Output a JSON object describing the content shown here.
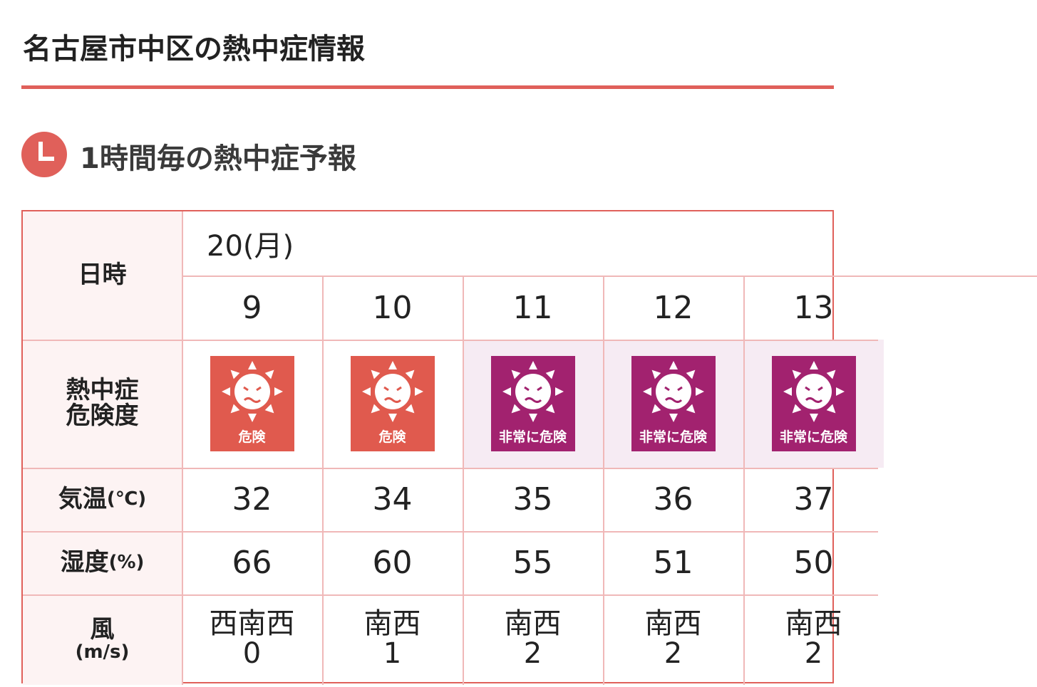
{
  "header": {
    "title": "名古屋市中区の熱中症情報"
  },
  "section": {
    "title": "1時間毎の熱中症予報"
  },
  "table": {
    "labels": {
      "datetime": "日時",
      "risk": [
        "熱中症",
        "危険度"
      ],
      "temp": "気温",
      "temp_unit": "(℃)",
      "humidity": "湿度",
      "humidity_unit": "(%)",
      "wind": "風",
      "wind_unit": "(m/s)"
    },
    "date": "20(月)",
    "columns": [
      {
        "hour": "9",
        "risk": "危険",
        "level": "danger",
        "temp": "32",
        "humidity": "66",
        "wind_dir": "西南西",
        "wind_speed": "0"
      },
      {
        "hour": "10",
        "risk": "危険",
        "level": "danger",
        "temp": "34",
        "humidity": "60",
        "wind_dir": "南西",
        "wind_speed": "1"
      },
      {
        "hour": "11",
        "risk": "非常に危険",
        "level": "extreme",
        "temp": "35",
        "humidity": "55",
        "wind_dir": "南西",
        "wind_speed": "2"
      },
      {
        "hour": "12",
        "risk": "非常に危険",
        "level": "extreme",
        "temp": "36",
        "humidity": "51",
        "wind_dir": "南西",
        "wind_speed": "2"
      },
      {
        "hour": "13",
        "risk": "非常に危険",
        "level": "extreme",
        "temp": "37",
        "humidity": "50",
        "wind_dir": "南西",
        "wind_speed": "2"
      }
    ]
  }
}
